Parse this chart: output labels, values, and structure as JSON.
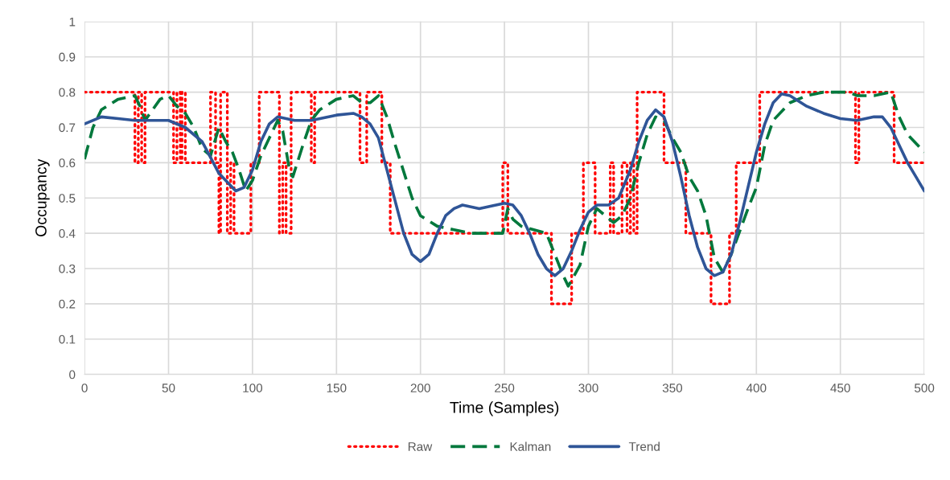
{
  "chart_data": {
    "type": "line",
    "xlabel": "Time (Samples)",
    "ylabel": "Occupancy",
    "xlim": [
      0,
      500
    ],
    "xticks": [
      0,
      50,
      100,
      150,
      200,
      250,
      300,
      350,
      400,
      450,
      500
    ],
    "ylim": [
      0,
      1
    ],
    "yticks": [
      0,
      0.1,
      0.2,
      0.3,
      0.4,
      0.5,
      0.6,
      0.7,
      0.8,
      0.9,
      1
    ],
    "grid": true,
    "legend": "bottom",
    "marker": "none",
    "series": [
      {
        "name": "Raw",
        "color": "#ff0000",
        "line_style": "dotted",
        "x": [
          0,
          30,
          30,
          32,
          32,
          34,
          34,
          36,
          36,
          53,
          53,
          55,
          55,
          57,
          57,
          58,
          58,
          60,
          60,
          75,
          75,
          78,
          78,
          80,
          80,
          81,
          81,
          85,
          85,
          87,
          87,
          89,
          89,
          99,
          99,
          104,
          104,
          116,
          116,
          118,
          118,
          120,
          120,
          123,
          123,
          135,
          135,
          137,
          137,
          164,
          164,
          168,
          168,
          177,
          177,
          182,
          182,
          249,
          249,
          252,
          252,
          278,
          278,
          290,
          290,
          297,
          297,
          304,
          304,
          313,
          313,
          315,
          315,
          320,
          320,
          323,
          323,
          325,
          325,
          327,
          327,
          329,
          329,
          345,
          345,
          358,
          358,
          373,
          373,
          384,
          384,
          388,
          388,
          402,
          402,
          459,
          459,
          461,
          461,
          482,
          482,
          500
        ],
        "values": [
          0.8,
          0.8,
          0.6,
          0.6,
          0.8,
          0.8,
          0.6,
          0.6,
          0.8,
          0.8,
          0.6,
          0.6,
          0.8,
          0.8,
          0.6,
          0.6,
          0.8,
          0.8,
          0.6,
          0.6,
          0.8,
          0.8,
          0.6,
          0.6,
          0.4,
          0.4,
          0.8,
          0.8,
          0.4,
          0.4,
          0.6,
          0.6,
          0.4,
          0.4,
          0.6,
          0.6,
          0.8,
          0.8,
          0.4,
          0.4,
          0.6,
          0.6,
          0.4,
          0.4,
          0.8,
          0.8,
          0.6,
          0.6,
          0.8,
          0.8,
          0.6,
          0.6,
          0.8,
          0.8,
          0.6,
          0.6,
          0.4,
          0.4,
          0.6,
          0.6,
          0.4,
          0.4,
          0.2,
          0.2,
          0.4,
          0.4,
          0.6,
          0.6,
          0.4,
          0.4,
          0.6,
          0.6,
          0.4,
          0.4,
          0.6,
          0.6,
          0.4,
          0.4,
          0.6,
          0.6,
          0.4,
          0.4,
          0.8,
          0.8,
          0.6,
          0.6,
          0.4,
          0.4,
          0.2,
          0.2,
          0.4,
          0.4,
          0.6,
          0.6,
          0.8,
          0.8,
          0.6,
          0.6,
          0.8,
          0.8,
          0.6,
          0.6
        ]
      },
      {
        "name": "Kalman",
        "color": "#00783c",
        "line_style": "dashed",
        "x": [
          0,
          5,
          10,
          20,
          30,
          33,
          36,
          45,
          50,
          55,
          60,
          65,
          70,
          75,
          80,
          84,
          88,
          92,
          96,
          100,
          105,
          110,
          115,
          118,
          122,
          124,
          130,
          135,
          140,
          150,
          160,
          165,
          170,
          175,
          180,
          185,
          195,
          200,
          210,
          220,
          230,
          249,
          252,
          255,
          260,
          275,
          280,
          285,
          288,
          295,
          300,
          305,
          310,
          315,
          320,
          325,
          330,
          335,
          340,
          345,
          350,
          355,
          360,
          365,
          370,
          375,
          380,
          385,
          395,
          400,
          405,
          410,
          420,
          430,
          440,
          455,
          460,
          470,
          480,
          485,
          490,
          500
        ],
        "values": [
          0.61,
          0.7,
          0.75,
          0.78,
          0.79,
          0.76,
          0.72,
          0.78,
          0.79,
          0.76,
          0.74,
          0.7,
          0.64,
          0.62,
          0.7,
          0.66,
          0.63,
          0.58,
          0.52,
          0.55,
          0.62,
          0.67,
          0.72,
          0.69,
          0.58,
          0.56,
          0.65,
          0.72,
          0.75,
          0.78,
          0.79,
          0.77,
          0.77,
          0.79,
          0.73,
          0.65,
          0.5,
          0.45,
          0.42,
          0.41,
          0.4,
          0.4,
          0.47,
          0.44,
          0.42,
          0.4,
          0.34,
          0.28,
          0.25,
          0.31,
          0.42,
          0.47,
          0.45,
          0.43,
          0.45,
          0.5,
          0.6,
          0.68,
          0.73,
          0.72,
          0.67,
          0.63,
          0.56,
          0.52,
          0.45,
          0.33,
          0.29,
          0.34,
          0.47,
          0.53,
          0.65,
          0.72,
          0.77,
          0.79,
          0.8,
          0.8,
          0.79,
          0.79,
          0.8,
          0.73,
          0.68,
          0.63
        ]
      },
      {
        "name": "Trend",
        "color": "#2f5597",
        "line_style": "solid",
        "x": [
          0,
          10,
          20,
          30,
          50,
          60,
          70,
          80,
          90,
          95,
          100,
          105,
          110,
          115,
          125,
          135,
          150,
          160,
          165,
          170,
          175,
          180,
          185,
          190,
          195,
          200,
          205,
          210,
          215,
          220,
          225,
          235,
          245,
          250,
          255,
          260,
          265,
          270,
          275,
          280,
          285,
          290,
          295,
          300,
          305,
          312,
          318,
          325,
          330,
          335,
          340,
          345,
          350,
          355,
          360,
          365,
          370,
          375,
          380,
          385,
          390,
          395,
          400,
          405,
          410,
          415,
          420,
          430,
          440,
          450,
          460,
          470,
          475,
          480,
          485,
          490,
          495,
          500
        ],
        "values": [
          0.71,
          0.73,
          0.725,
          0.72,
          0.72,
          0.7,
          0.66,
          0.57,
          0.52,
          0.53,
          0.58,
          0.66,
          0.71,
          0.73,
          0.72,
          0.72,
          0.735,
          0.74,
          0.73,
          0.71,
          0.67,
          0.58,
          0.49,
          0.4,
          0.34,
          0.32,
          0.34,
          0.4,
          0.45,
          0.47,
          0.48,
          0.47,
          0.48,
          0.485,
          0.48,
          0.45,
          0.4,
          0.34,
          0.3,
          0.28,
          0.3,
          0.35,
          0.41,
          0.46,
          0.48,
          0.48,
          0.5,
          0.58,
          0.66,
          0.72,
          0.75,
          0.73,
          0.66,
          0.56,
          0.45,
          0.36,
          0.3,
          0.28,
          0.29,
          0.34,
          0.43,
          0.53,
          0.63,
          0.71,
          0.77,
          0.795,
          0.79,
          0.76,
          0.74,
          0.725,
          0.72,
          0.73,
          0.73,
          0.7,
          0.65,
          0.6,
          0.56,
          0.52
        ]
      }
    ]
  }
}
